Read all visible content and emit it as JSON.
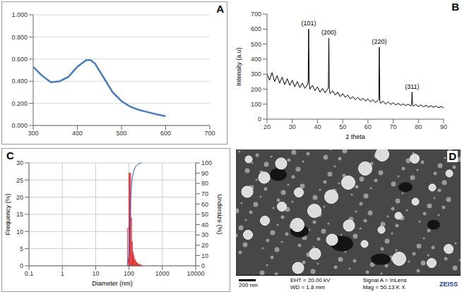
{
  "chart_data": [
    {
      "panel": "A",
      "type": "line",
      "x": [
        300,
        320,
        340,
        360,
        380,
        400,
        420,
        430,
        440,
        460,
        480,
        500,
        520,
        540,
        560,
        580,
        600
      ],
      "values": [
        0.53,
        0.45,
        0.39,
        0.4,
        0.44,
        0.53,
        0.59,
        0.59,
        0.56,
        0.43,
        0.3,
        0.22,
        0.17,
        0.14,
        0.12,
        0.1,
        0.085
      ],
      "color": "#4a7ebb",
      "xlim": [
        300,
        700
      ],
      "xticks": [
        300,
        400,
        500,
        600,
        700
      ],
      "ylim": [
        0,
        1
      ],
      "yticks": [
        {
          "value": 0,
          "label": "0.000"
        },
        {
          "value": 0.2,
          "label": "0.200"
        },
        {
          "value": 0.4,
          "label": "0.400"
        },
        {
          "value": 0.6,
          "label": "0.600"
        },
        {
          "value": 0.8,
          "label": "0.800"
        },
        {
          "value": 1,
          "label": "1.000"
        }
      ],
      "grid": true
    },
    {
      "panel": "B",
      "type": "line",
      "x_label": "2 theta",
      "y_label": "Intensity (a.u)",
      "x": [
        20,
        21,
        22,
        23,
        24,
        25,
        26,
        27,
        28,
        29,
        30,
        31,
        32,
        33,
        34,
        35,
        36,
        36.3,
        36.5,
        36.7,
        37,
        38,
        39,
        40,
        41,
        42,
        43,
        44,
        44.3,
        44.5,
        44.7,
        45,
        46,
        47,
        48,
        49,
        50,
        51,
        52,
        53,
        54,
        55,
        56,
        57,
        58,
        59,
        60,
        61,
        62,
        63,
        64,
        64.3,
        64.5,
        64.7,
        65,
        66,
        67,
        68,
        69,
        70,
        71,
        72,
        73,
        74,
        75,
        76,
        77,
        77.3,
        77.5,
        77.7,
        78,
        79,
        80,
        81,
        82,
        83,
        84,
        85,
        86,
        87,
        88,
        89,
        90
      ],
      "values": [
        300,
        260,
        310,
        250,
        290,
        240,
        280,
        230,
        270,
        225,
        260,
        215,
        250,
        210,
        240,
        205,
        230,
        250,
        600,
        240,
        200,
        225,
        190,
        215,
        180,
        205,
        175,
        200,
        210,
        540,
        200,
        170,
        190,
        160,
        180,
        150,
        170,
        145,
        160,
        135,
        150,
        130,
        145,
        125,
        140,
        120,
        135,
        115,
        130,
        110,
        125,
        130,
        480,
        120,
        105,
        120,
        100,
        115,
        98,
        110,
        95,
        105,
        92,
        102,
        90,
        100,
        88,
        100,
        180,
        95,
        86,
        98,
        84,
        95,
        82,
        92,
        80,
        90,
        78,
        88,
        76,
        85,
        75
      ],
      "color": "#000000",
      "xlim": [
        20,
        90
      ],
      "xticks": [
        20,
        30,
        40,
        50,
        60,
        70,
        80,
        90
      ],
      "ylim": [
        0,
        700
      ],
      "yticks": [
        0,
        100,
        200,
        300,
        400,
        500,
        600,
        700
      ],
      "annotations": [
        {
          "text": "(101)",
          "x": 36.5,
          "y": 600
        },
        {
          "text": "(200)",
          "x": 44.5,
          "y": 540
        },
        {
          "text": "(220)",
          "x": 64.5,
          "y": 480
        },
        {
          "text": "(311)",
          "x": 77.5,
          "y": 180
        }
      ]
    },
    {
      "panel": "C",
      "type": "histogram",
      "x_label": "Diameter (nm)",
      "y_label": "Frequency (%)",
      "y2_label": "Undersize (%)",
      "log": "x",
      "grid": true,
      "xlim": [
        0.1,
        10000
      ],
      "xticks": [
        0.1,
        1,
        10,
        100,
        1000,
        10000
      ],
      "ylim": [
        0,
        30
      ],
      "yticks": [
        0,
        5,
        10,
        15,
        20,
        25,
        30
      ],
      "y2lim": [
        0,
        100
      ],
      "y2ticks": [
        0,
        10,
        20,
        30,
        40,
        50,
        60,
        70,
        80,
        90,
        100
      ],
      "bins": [
        91,
        100,
        106,
        112,
        119,
        126,
        134,
        142,
        151,
        160,
        170,
        181,
        192,
        204,
        217,
        231,
        245
      ],
      "counts": [
        11,
        27,
        27,
        14,
        7,
        4,
        3,
        2,
        1.5,
        1,
        0.8,
        0.5,
        0.5,
        0.3,
        0.2,
        0.2
      ],
      "color": "#e03030",
      "series": [
        {
          "type": "line",
          "axis": "y2",
          "color": "#3050e0",
          "x": [
            91,
            100,
            106,
            112,
            119,
            126,
            134,
            142,
            151,
            160,
            170,
            181,
            192,
            204,
            217,
            231,
            245
          ],
          "values": [
            0,
            11,
            38,
            65,
            79,
            86,
            90,
            93,
            95,
            96.5,
            97.5,
            98.3,
            98.8,
            99.3,
            99.6,
            99.8,
            100
          ]
        }
      ]
    },
    {
      "panel": "D",
      "type": "image",
      "scale_bar": "200 nm",
      "info": [
        "EHT = 20.00 kV",
        "WD = 1.8 mm",
        "Signal A = InLens",
        "Mag = 50.13 K X"
      ],
      "brand": "ZEISS"
    }
  ]
}
